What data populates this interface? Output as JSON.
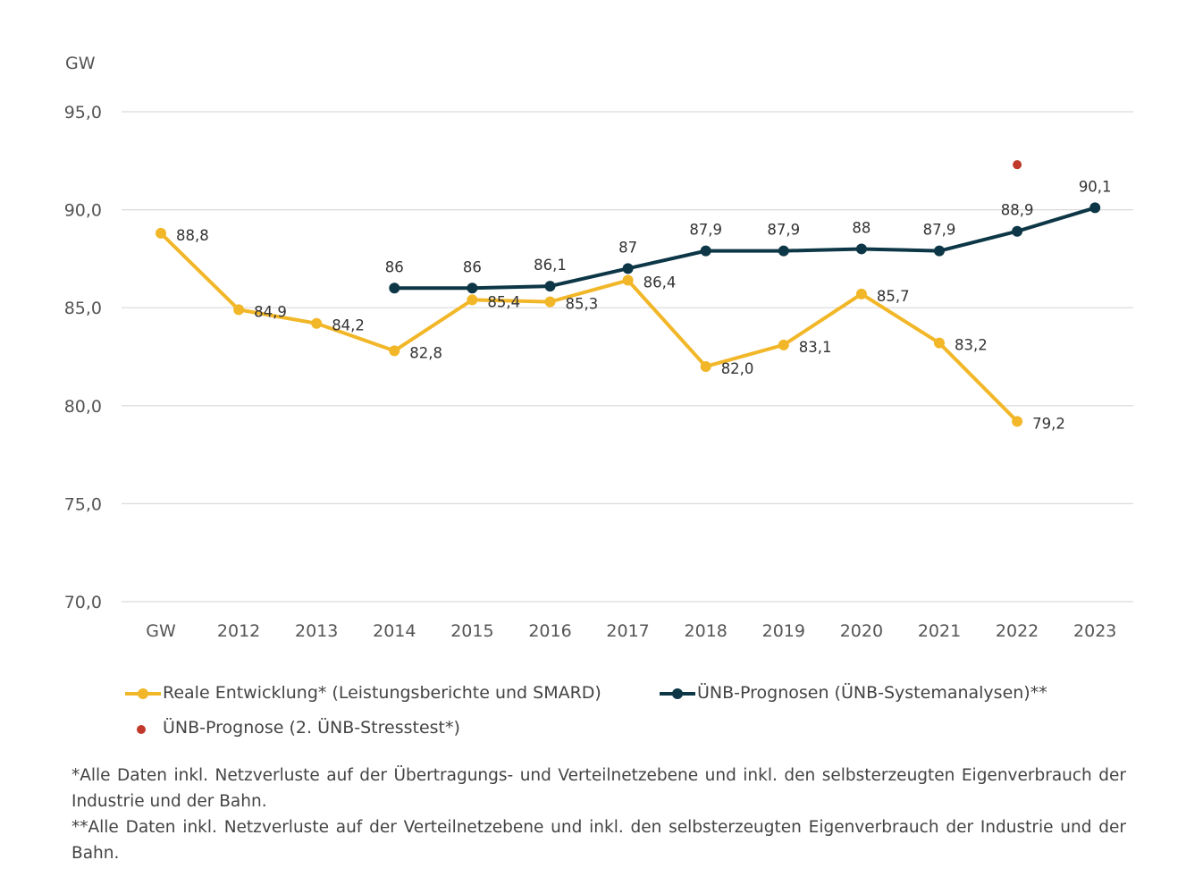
{
  "chart_data": {
    "type": "line",
    "ylabel": "GW",
    "ylim": [
      70,
      95
    ],
    "yticks": [
      "70,0",
      "75,0",
      "80,0",
      "85,0",
      "90,0",
      "95,0"
    ],
    "ytick_values": [
      70,
      75,
      80,
      85,
      90,
      95
    ],
    "categories": [
      "GW",
      "2012",
      "2013",
      "2014",
      "2015",
      "2016",
      "2017",
      "2018",
      "2019",
      "2020",
      "2021",
      "2022",
      "2023"
    ],
    "grid": true,
    "legend_position": "bottom",
    "series": [
      {
        "name": "Reale Entwicklung* (Leistungsberichte und SMARD)",
        "color": "#F2B728",
        "marker": "circle",
        "values": [
          88.8,
          84.9,
          84.2,
          82.8,
          85.4,
          85.3,
          86.4,
          82.0,
          83.1,
          85.7,
          83.2,
          79.2,
          null
        ],
        "labels": [
          "88,8",
          "84,9",
          "84,2",
          "82,8",
          "85,4",
          "85,3",
          "86,4",
          "82,0",
          "83,1",
          "85,7",
          "83,2",
          "79,2",
          ""
        ]
      },
      {
        "name": "ÜNB-Prognosen (ÜNB-Systemanalysen)**",
        "color": "#0D3746",
        "marker": "circle",
        "values": [
          null,
          null,
          null,
          86,
          86,
          86.1,
          87,
          87.9,
          87.9,
          88,
          87.9,
          88.9,
          90.1
        ],
        "labels": [
          "",
          "",
          "",
          "86",
          "86",
          "86,1",
          "87",
          "87,9",
          "87,9",
          "88",
          "87,9",
          "88,9",
          "90,1"
        ]
      },
      {
        "name": "ÜNB-Prognose (2. ÜNB-Stresstest*)",
        "color": "#C0392B",
        "marker": "dot",
        "values": [
          null,
          null,
          null,
          null,
          null,
          null,
          null,
          null,
          null,
          null,
          null,
          92.3,
          null
        ],
        "labels": [
          "",
          "",
          "",
          "",
          "",
          "",
          "",
          "",
          "",
          "",
          "",
          "",
          ""
        ]
      }
    ]
  },
  "footnotes": [
    "*Alle Daten inkl. Netzverluste auf der Übertragungs- und Verteilnetzebene und inkl. den selbsterzeugten Eigenverbrauch der Industrie und der Bahn.",
    "**Alle Daten inkl. Netzverluste auf der Verteilnetzebene und inkl. den selbsterzeugten Eigenverbrauch der Industrie und der Bahn."
  ]
}
